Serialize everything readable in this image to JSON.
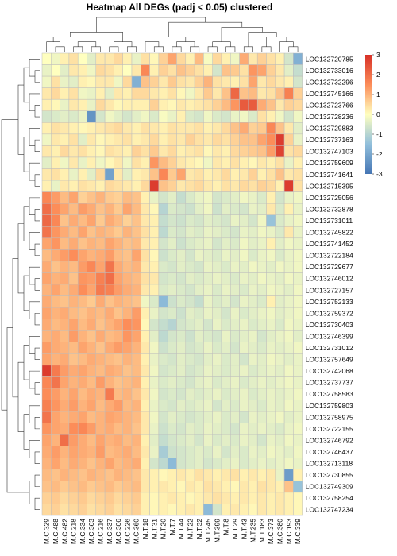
{
  "chart_data": {
    "type": "heatmap",
    "title": "Heatmap All DEGs (padj < 0.05) clustered",
    "columns": [
      "M.C.329",
      "M.C.488",
      "M.C.482",
      "M.C.218",
      "M.C.334",
      "M.C.363",
      "M.C.216",
      "M.C.337",
      "M.C.306",
      "M.C.226",
      "M.C.360",
      "M.T.18",
      "M.T.31",
      "M.T.20",
      "M.T.7",
      "M.T.44",
      "M.T.22",
      "M.T.32",
      "M.T.245",
      "M.T.399",
      "M.T.8",
      "M.T.29",
      "M.T.43",
      "M.T.235",
      "M.T.183",
      "M.C.373",
      "M.C.380",
      "M.C.193",
      "M.C.339"
    ],
    "rows": [
      "LOC132720785",
      "LOC132733016",
      "LOC132732296",
      "LOC132745166",
      "LOC132723766",
      "LOC132728236",
      "LOC132729883",
      "LOC132737163",
      "LOC132747103",
      "LOC132759609",
      "LOC132741641",
      "LOC132715395",
      "LOC132725056",
      "LOC132732878",
      "LOC132731011",
      "LOC132745822",
      "LOC132741452",
      "LOC132722184",
      "LOC132729677",
      "LOC132746012",
      "LOC132727157",
      "LOC132752133",
      "LOC132759372",
      "LOC132730403",
      "LOC132746399",
      "LOC132731012",
      "LOC132757649",
      "LOC132742068",
      "LOC132737737",
      "LOC132758583",
      "LOC132759803",
      "LOC132758975",
      "LOC132722155",
      "LOC132746792",
      "LOC132746437",
      "LOC132713118",
      "LOC132730855",
      "LOC132749309",
      "LOC132758254",
      "LOC132747234"
    ],
    "values": [
      [
        0,
        -0.2,
        0.2,
        0.4,
        0,
        -0.4,
        0.3,
        0.3,
        0.5,
        0.2,
        -0.3,
        0.4,
        0.1,
        0.6,
        1.2,
        0.5,
        0.2,
        0.9,
        -0.1,
        0.5,
        0.2,
        -0.2,
        1.1,
        0.3,
        0.6,
        0.4,
        0.2,
        -0.6,
        -1.8
      ],
      [
        -0.3,
        0,
        -0.4,
        0.3,
        0.2,
        -0.2,
        0.5,
        0.4,
        0.2,
        0,
        0.3,
        1.6,
        0.2,
        0.6,
        0.4,
        0.8,
        0.6,
        0.4,
        0.2,
        -0.6,
        0.8,
        0.7,
        0.4,
        1.4,
        1.2,
        0.6,
        0.3,
        -0.4,
        -0.8
      ],
      [
        -0.2,
        0.4,
        -0.3,
        -0.4,
        0.2,
        0.1,
        0.3,
        0.3,
        -0.2,
        0.5,
        -1.8,
        0.8,
        0.6,
        0.3,
        0.7,
        0.4,
        0.3,
        0.6,
        1.0,
        0.4,
        0.3,
        0.2,
        0.4,
        1.2,
        0.3,
        0.5,
        0.3,
        0.2,
        -0.6
      ],
      [
        0.3,
        0.5,
        0.2,
        0.4,
        -0.2,
        -0.3,
        0.2,
        -0.4,
        0.3,
        0.2,
        0.5,
        0.5,
        0.3,
        0.2,
        0.4,
        0.1,
        -0.2,
        0.3,
        0.7,
        0.3,
        0.8,
        2.1,
        0.8,
        0.9,
        0.3,
        0.4,
        0.8,
        1.7,
        0.6
      ],
      [
        0.2,
        0.1,
        -0.3,
        0.3,
        0.2,
        -0.3,
        0.5,
        0.3,
        0.1,
        0.2,
        0.2,
        0.2,
        0.6,
        0.2,
        0.1,
        0.3,
        0.2,
        0.3,
        0.4,
        0.6,
        0.9,
        1.4,
        2.3,
        2.3,
        1.1,
        0.8,
        0.3,
        0.6,
        0.5
      ],
      [
        -0.6,
        -0.5,
        -0.4,
        -0.5,
        -0.3,
        -2.4,
        -0.6,
        -0.2,
        -0.4,
        -0.6,
        -0.4,
        -0.2,
        -0.5,
        -0.1,
        -0.3,
        0.2,
        -0.5,
        -0.6,
        -0.2,
        -0.5,
        -0.6,
        -0.3,
        -0.2,
        -0.5,
        0.4,
        0.2,
        -0.2,
        -0.6,
        -0.2
      ],
      [
        0.2,
        0.4,
        0.3,
        0.2,
        0.1,
        0.2,
        0.3,
        0.4,
        0.5,
        0.3,
        0.2,
        0.4,
        0.3,
        0.2,
        0.4,
        0.3,
        0.3,
        0.4,
        0.2,
        0.3,
        0.5,
        0.8,
        1.1,
        0.6,
        0.7,
        1.6,
        0.8,
        0.3,
        -0.4
      ],
      [
        -0.2,
        0.3,
        0.2,
        0.4,
        -0.4,
        0.3,
        0.1,
        0.2,
        0.3,
        0.4,
        0.2,
        0.3,
        0.5,
        0.2,
        0.4,
        0.3,
        0.6,
        0.4,
        0.3,
        0.5,
        0.4,
        0.6,
        0.8,
        0.8,
        1.2,
        1.5,
        2.8,
        0.6,
        -0.3
      ],
      [
        0.3,
        0.2,
        0.5,
        0.3,
        0.4,
        0.2,
        0.1,
        0.4,
        0.3,
        0.2,
        0.6,
        0.4,
        0.7,
        0.3,
        0.5,
        0.2,
        0.3,
        0.4,
        0.1,
        0.3,
        0.2,
        0.5,
        0.6,
        0.7,
        0.8,
        1.3,
        2.7,
        0.4,
        0.5
      ],
      [
        -0.4,
        0.2,
        -0.2,
        0.3,
        -0.3,
        0.2,
        -0.2,
        0.1,
        0.3,
        -0.2,
        0.4,
        0.2,
        1.4,
        0.9,
        0.6,
        0.3,
        0.2,
        0.1,
        -0.2,
        0.3,
        0.2,
        0.4,
        0.2,
        0.1,
        0.3,
        0.2,
        0.4,
        -0.3,
        0.2
      ],
      [
        0.3,
        0.4,
        0.2,
        -0.3,
        0.2,
        -0.4,
        0.5,
        -2.1,
        0.3,
        -0.4,
        0.2,
        0.3,
        0.8,
        1.6,
        0.7,
        1.2,
        0.3,
        0.4,
        0.2,
        0.3,
        0.5,
        0.2,
        0.3,
        0.6,
        0.2,
        0.4,
        0.8,
        0.3,
        0.4
      ],
      [
        0.2,
        -0.3,
        0.3,
        0.2,
        0.4,
        0.3,
        0.2,
        0.5,
        0.4,
        0.3,
        0.2,
        0.5,
        2.8,
        0.8,
        0.6,
        0.3,
        0.4,
        0.5,
        0.3,
        0.2,
        0.4,
        0.3,
        0.5,
        0.4,
        0.6,
        0.5,
        0.2,
        2.8,
        0.4
      ],
      [
        1.6,
        1.3,
        0.9,
        1.2,
        0.6,
        0.8,
        1.0,
        0.7,
        0.6,
        0.9,
        0.8,
        0.2,
        -0.3,
        -0.6,
        -0.4,
        -0.8,
        -0.5,
        -0.3,
        -0.2,
        -0.6,
        -0.5,
        -0.4,
        -0.2,
        -0.3,
        -0.5,
        0.2,
        -0.6,
        -0.3,
        -0.2
      ],
      [
        2.0,
        1.5,
        1.2,
        0.9,
        1.3,
        1.1,
        0.8,
        1.0,
        0.7,
        1.2,
        0.9,
        0.3,
        0.1,
        -1.0,
        -0.5,
        -0.6,
        -0.7,
        -0.4,
        -0.2,
        -0.7,
        -0.4,
        -0.5,
        -0.6,
        -0.3,
        -0.4,
        0.3,
        -0.5,
        0.2,
        -0.3
      ],
      [
        2.1,
        1.6,
        0.8,
        1.1,
        0.9,
        1.2,
        0.7,
        1.1,
        0.9,
        0.6,
        0.8,
        0.3,
        0.2,
        -0.8,
        -0.6,
        -0.7,
        -0.5,
        -0.6,
        -0.4,
        -0.5,
        -0.6,
        -0.3,
        -0.4,
        -0.6,
        -0.2,
        -1.4,
        -0.5,
        -0.3,
        -0.2
      ],
      [
        1.9,
        1.4,
        1.1,
        0.9,
        1.2,
        0.8,
        1.0,
        0.9,
        0.7,
        1.0,
        0.8,
        0.4,
        0.2,
        -0.9,
        -0.5,
        -0.6,
        -0.4,
        -0.5,
        -0.3,
        -0.4,
        -0.5,
        -0.6,
        -0.3,
        -0.4,
        -0.2,
        -0.3,
        -0.5,
        0.3,
        -0.3
      ],
      [
        1.2,
        1.4,
        0.9,
        1.1,
        0.8,
        1.0,
        0.9,
        1.2,
        1.0,
        0.8,
        0.9,
        0.3,
        0.2,
        -0.6,
        -0.4,
        -0.7,
        -0.5,
        -0.4,
        -0.3,
        -0.6,
        -0.4,
        -0.5,
        -0.2,
        -0.4,
        -0.3,
        0.2,
        -0.4,
        -0.2,
        -0.3
      ],
      [
        0.9,
        1.1,
        1.3,
        1.5,
        1.2,
        1.0,
        1.1,
        1.3,
        0.9,
        0.8,
        1.2,
        0.4,
        0.1,
        -0.7,
        -0.5,
        -0.4,
        -0.6,
        -0.3,
        -0.4,
        -0.5,
        -0.3,
        -0.4,
        -0.2,
        -0.5,
        -0.3,
        -0.2,
        -0.5,
        -0.3,
        -0.2
      ],
      [
        1.1,
        0.8,
        1.0,
        0.9,
        1.3,
        1.6,
        1.2,
        1.9,
        1.1,
        0.9,
        1.0,
        0.3,
        0.2,
        -0.5,
        -0.6,
        -0.4,
        -0.5,
        -0.6,
        -0.3,
        -0.4,
        -0.5,
        -0.3,
        -0.4,
        -0.2,
        -0.3,
        -0.4,
        -0.2,
        -0.3,
        -0.2
      ],
      [
        1.2,
        1.0,
        1.1,
        0.8,
        1.4,
        1.3,
        1.7,
        2.0,
        1.2,
        1.0,
        0.9,
        0.4,
        0.3,
        -0.6,
        -0.5,
        -0.6,
        -0.4,
        -0.5,
        -0.4,
        -0.3,
        -0.4,
        -0.5,
        -0.3,
        -0.4,
        -0.2,
        -0.3,
        -0.4,
        -0.2,
        -0.3
      ],
      [
        1.0,
        1.2,
        0.9,
        1.1,
        1.5,
        1.2,
        1.8,
        1.7,
        1.3,
        1.1,
        1.0,
        0.3,
        0.2,
        -0.5,
        -0.4,
        -0.5,
        -0.6,
        -0.4,
        -0.3,
        -0.5,
        -0.3,
        -0.4,
        -0.5,
        -0.3,
        -0.4,
        -0.2,
        -0.3,
        -0.4,
        -0.2
      ],
      [
        1.1,
        0.9,
        0.8,
        1.0,
        0.9,
        0.7,
        1.1,
        0.8,
        1.0,
        0.9,
        0.8,
        -0.2,
        -0.5,
        -1.6,
        -0.7,
        -0.5,
        -0.6,
        -0.8,
        -0.3,
        -0.5,
        -0.4,
        -0.6,
        -0.3,
        -0.4,
        -0.5,
        0.2,
        -0.4,
        -0.3,
        -0.2
      ],
      [
        1.2,
        1.0,
        1.1,
        0.9,
        0.8,
        1.0,
        0.9,
        1.1,
        0.8,
        1.0,
        1.3,
        0.2,
        -0.3,
        -0.6,
        -0.5,
        -0.7,
        -0.4,
        -0.5,
        -0.3,
        -0.4,
        -0.6,
        -0.3,
        -0.5,
        -0.4,
        -0.3,
        -0.2,
        -0.4,
        -0.3,
        -0.2
      ],
      [
        1.1,
        0.9,
        1.0,
        1.2,
        0.9,
        1.1,
        0.8,
        1.0,
        1.2,
        1.5,
        1.4,
        0.1,
        -0.6,
        -0.8,
        -1.0,
        -0.6,
        -0.5,
        -0.4,
        -0.6,
        -0.3,
        -0.5,
        -0.4,
        -0.3,
        -0.5,
        -0.4,
        -0.3,
        -0.5,
        -0.2,
        -0.3
      ],
      [
        1.0,
        1.1,
        0.9,
        1.3,
        1.0,
        0.8,
        1.1,
        0.9,
        1.0,
        1.4,
        1.2,
        0.2,
        -0.4,
        -0.9,
        -0.6,
        -0.5,
        -0.7,
        -0.4,
        -0.5,
        -0.6,
        -0.3,
        -0.5,
        -0.4,
        -0.3,
        -0.6,
        -0.4,
        -0.3,
        -0.2,
        -0.4
      ],
      [
        1.3,
        1.1,
        1.0,
        0.9,
        1.2,
        1.0,
        0.8,
        1.1,
        1.3,
        1.2,
        1.0,
        0.3,
        -0.2,
        -0.7,
        -0.5,
        -0.4,
        -0.6,
        -0.5,
        -0.3,
        -0.5,
        -0.4,
        -0.6,
        -0.3,
        -0.4,
        -0.5,
        -0.3,
        -0.4,
        -0.3,
        -0.2
      ],
      [
        1.2,
        1.0,
        1.1,
        0.8,
        0.9,
        1.1,
        1.0,
        0.9,
        0.8,
        1.0,
        0.9,
        0.2,
        -0.3,
        -0.5,
        -0.6,
        -0.4,
        -0.5,
        -0.6,
        -0.4,
        -0.3,
        -0.5,
        -0.4,
        -0.6,
        -0.3,
        -0.4,
        -0.2,
        -0.3,
        -0.4,
        -0.3
      ],
      [
        2.8,
        1.8,
        1.3,
        1.1,
        1.2,
        1.0,
        0.9,
        1.1,
        1.0,
        0.8,
        0.9,
        0.3,
        -0.2,
        -0.6,
        -0.5,
        -0.4,
        -0.6,
        -0.5,
        -0.3,
        -0.4,
        -0.5,
        -0.4,
        -0.3,
        -0.5,
        -0.4,
        -0.3,
        -0.4,
        -0.2,
        -0.3
      ],
      [
        1.6,
        1.9,
        1.2,
        1.0,
        1.1,
        0.9,
        1.3,
        1.0,
        0.8,
        0.9,
        1.0,
        0.2,
        -0.3,
        -0.5,
        -0.4,
        -0.5,
        -0.6,
        -0.4,
        -0.3,
        -0.5,
        -0.4,
        -0.3,
        -0.5,
        -0.4,
        -0.3,
        -0.4,
        -0.3,
        -0.2,
        -0.3
      ],
      [
        1.5,
        1.3,
        1.0,
        1.2,
        0.9,
        1.1,
        1.0,
        1.8,
        0.9,
        1.0,
        0.8,
        0.3,
        -0.2,
        -0.6,
        -0.5,
        -0.6,
        -0.4,
        -0.5,
        -0.4,
        -0.3,
        -0.5,
        -0.4,
        -0.3,
        -0.5,
        -0.4,
        -0.3,
        -0.4,
        -0.3,
        -0.2
      ],
      [
        1.7,
        1.4,
        1.1,
        1.3,
        1.0,
        1.2,
        0.9,
        1.1,
        1.3,
        0.9,
        1.0,
        0.2,
        -0.3,
        -0.5,
        -0.6,
        -0.4,
        -0.5,
        -0.4,
        -0.3,
        -0.6,
        -0.4,
        -0.5,
        -0.3,
        -0.4,
        -0.5,
        -0.3,
        -0.4,
        -0.2,
        -0.3
      ],
      [
        1.9,
        1.2,
        1.0,
        1.1,
        1.2,
        0.9,
        1.0,
        1.2,
        1.1,
        1.0,
        0.9,
        0.3,
        -0.2,
        -0.6,
        -0.4,
        -0.5,
        -0.6,
        -0.5,
        -0.4,
        -0.3,
        -0.5,
        -0.4,
        -0.6,
        -0.3,
        -0.4,
        -0.3,
        -0.2,
        -0.4,
        -0.3
      ],
      [
        1.4,
        1.2,
        1.1,
        1.5,
        1.6,
        1.3,
        1.0,
        1.1,
        0.9,
        1.0,
        0.8,
        0.3,
        -0.3,
        -0.7,
        -0.5,
        -0.6,
        -0.4,
        -0.5,
        -0.3,
        -0.4,
        -0.5,
        -0.6,
        -0.3,
        -0.4,
        -0.3,
        -0.4,
        -0.5,
        -0.3,
        -0.2
      ],
      [
        1.2,
        1.0,
        2.0,
        1.3,
        1.1,
        0.9,
        1.2,
        1.0,
        1.1,
        0.9,
        1.0,
        0.2,
        -0.4,
        -0.8,
        -0.6,
        -0.5,
        -0.4,
        -0.6,
        -0.3,
        -0.5,
        -0.4,
        -0.5,
        -0.3,
        -0.4,
        -0.6,
        -0.3,
        -0.4,
        -0.2,
        -0.3
      ],
      [
        1.1,
        1.3,
        1.0,
        1.2,
        1.1,
        1.0,
        1.3,
        0.9,
        1.0,
        1.1,
        0.9,
        0.3,
        -0.3,
        -1.2,
        -0.7,
        -0.6,
        -0.5,
        -0.4,
        -0.5,
        -0.3,
        -0.6,
        -0.4,
        -0.5,
        -0.3,
        -0.4,
        -0.2,
        -0.3,
        -0.4,
        -0.2
      ],
      [
        1.0,
        1.2,
        0.9,
        1.1,
        1.0,
        0.8,
        1.0,
        1.2,
        0.9,
        1.0,
        1.1,
        0.2,
        -0.6,
        -0.9,
        -1.6,
        -0.6,
        -0.5,
        -0.4,
        -0.6,
        -0.5,
        -0.4,
        -0.3,
        -0.5,
        -0.4,
        -0.3,
        -0.4,
        -0.3,
        -0.2,
        -0.3
      ],
      [
        0.9,
        0.8,
        1.0,
        0.9,
        0.8,
        1.0,
        0.9,
        0.8,
        1.0,
        0.9,
        0.8,
        0.3,
        0.2,
        0.1,
        0.2,
        0.3,
        0.2,
        0.4,
        0.3,
        0.2,
        0.3,
        0.4,
        0.2,
        0.3,
        0.2,
        0.3,
        -0.3,
        -2.2,
        0.2
      ],
      [
        0.8,
        0.9,
        0.7,
        0.8,
        0.9,
        0.7,
        0.8,
        0.9,
        0.7,
        0.8,
        0.9,
        0.3,
        0.2,
        0.3,
        0.2,
        0.1,
        0.3,
        0.2,
        0.4,
        0.3,
        0.2,
        0.1,
        0.3,
        0.2,
        0.4,
        0.3,
        0.2,
        0.8,
        -1.4
      ],
      [
        0.6,
        0.7,
        0.5,
        0.6,
        0.7,
        0.5,
        0.6,
        0.7,
        0.5,
        0.6,
        0.7,
        0.2,
        0.1,
        0.2,
        0.3,
        0.2,
        0.1,
        0.2,
        0.3,
        0.4,
        0.3,
        0.2,
        0.3,
        0.2,
        0.3,
        0.2,
        0.3,
        0.2,
        0.1
      ],
      [
        0.5,
        0.6,
        0.4,
        0.5,
        0.6,
        0.4,
        0.5,
        0.6,
        0.4,
        0.5,
        0.6,
        0.2,
        0.1,
        0.2,
        0.1,
        0.2,
        0.3,
        0.2,
        -1.6,
        -0.6,
        0.2,
        0.3,
        0.2,
        0.1,
        0.3,
        0.2,
        0.3,
        0.2,
        0.1
      ]
    ],
    "colorbar": {
      "min": -3,
      "max": 3,
      "ticks": [
        3,
        2,
        1,
        0,
        -1,
        -2,
        -3
      ]
    },
    "colors": {
      "low": "#4575b4",
      "mid": "#ffffbf",
      "high": "#d73027"
    }
  }
}
